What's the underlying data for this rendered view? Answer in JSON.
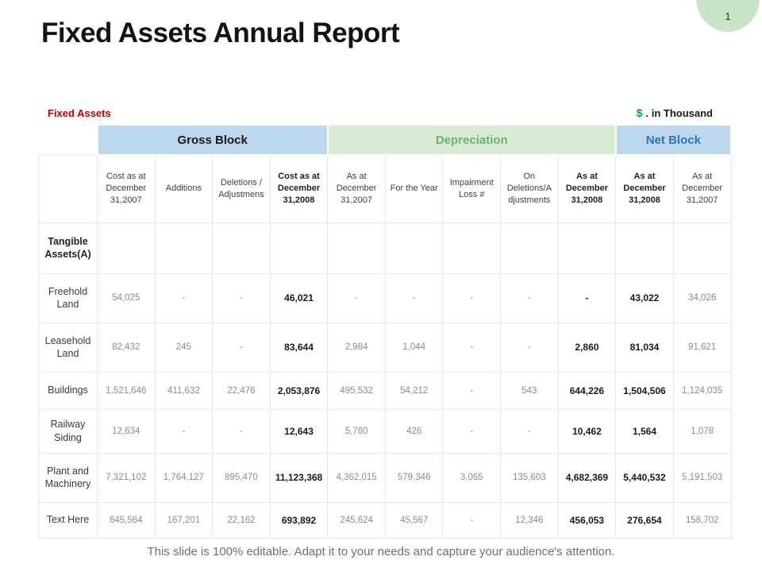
{
  "slide": {
    "page_number": "1",
    "title": "Fixed Assets Annual Report",
    "footer": "This slide is 100% editable. Adapt it to your needs and capture your audience's attention."
  },
  "caption": {
    "left": "Fixed Assets",
    "currency_symbol": "$",
    "unit_text": ". in Thousand"
  },
  "colors": {
    "badge_bg": "#c9e4c6",
    "caption_left": "#c00000",
    "currency_green": "#00a550",
    "blue_band_bg": "#bdd7ee",
    "green_band_bg": "#d9ead5",
    "depreciation_text": "#6cb36f",
    "net_block_text": "#2e74b5",
    "gross_block_text": "#1a1a1a"
  },
  "table": {
    "groups": [
      {
        "label": "Gross Block",
        "span": 4,
        "bg": "#bdd7ee",
        "color": "#1a1a1a"
      },
      {
        "label": "Depreciation",
        "span": 5,
        "bg": "#d9ead5",
        "color": "#6cb36f"
      },
      {
        "label": "Net Block",
        "span": 2,
        "bg": "#bdd7ee",
        "color": "#2e74b5"
      }
    ],
    "columns": [
      {
        "label": "Cost as at December 31,2007",
        "bold": false
      },
      {
        "label": "Additions",
        "bold": false
      },
      {
        "label": "Deletions / Adjustmens",
        "bold": false
      },
      {
        "label": "Cost as at December 31,2008",
        "bold": true
      },
      {
        "label": "As at December 31,2007",
        "bold": false
      },
      {
        "label": "For the Year",
        "bold": false
      },
      {
        "label": "Impairment Loss #",
        "bold": false
      },
      {
        "label": "On Deletions/A djustments",
        "bold": false
      },
      {
        "label": "As at December 31,2008",
        "bold": true
      },
      {
        "label": "As at December 31,2008",
        "bold": true
      },
      {
        "label": "As at December 31,2007",
        "bold": false
      }
    ],
    "bold_value_columns": [
      3,
      8,
      9
    ],
    "rows": [
      {
        "label": "Tangible Assets(A)",
        "label_bold": true,
        "values": [
          "",
          "",
          "",
          "",
          "",
          "",
          "",
          "",
          "",
          "",
          ""
        ]
      },
      {
        "label": "Freehold Land",
        "label_bold": false,
        "values": [
          "54,025",
          "-",
          "-",
          "46,021",
          "-",
          "-",
          "-",
          "-",
          "-",
          "43,022",
          "34,026"
        ]
      },
      {
        "label": "Leasehold Land",
        "label_bold": false,
        "values": [
          "82,432",
          "245",
          "-",
          "83,644",
          "2,984",
          "1,044",
          "-",
          "-",
          "2,860",
          "81,034",
          "91,621"
        ]
      },
      {
        "label": "Buildings",
        "label_bold": false,
        "values": [
          "1,521,646",
          "411,632",
          "22,476",
          "2,053,876",
          "495,532",
          "54,212",
          "-",
          "543",
          "644,226",
          "1,504,506",
          "1,124,035"
        ]
      },
      {
        "label": "Railway Siding",
        "label_bold": false,
        "values": [
          "12,634",
          "-",
          "-",
          "12,643",
          "5,780",
          "426",
          "-",
          "-",
          "10,462",
          "1,564",
          "1,078"
        ]
      },
      {
        "label": "Plant and Machinery",
        "label_bold": false,
        "values": [
          "7,321,102",
          "1,764,127",
          "895,470",
          "11,123,368",
          "4,362,015",
          "579,346",
          "3,065",
          "135,603",
          "4,682,369",
          "5,440,532",
          "5,191,503"
        ]
      },
      {
        "label": "Text Here",
        "label_bold": false,
        "values": [
          "645,564",
          "167,201",
          "22,162",
          "693,892",
          "245,624",
          "45,567",
          "-",
          "12,346",
          "456,053",
          "276,654",
          "158,702"
        ]
      }
    ]
  }
}
